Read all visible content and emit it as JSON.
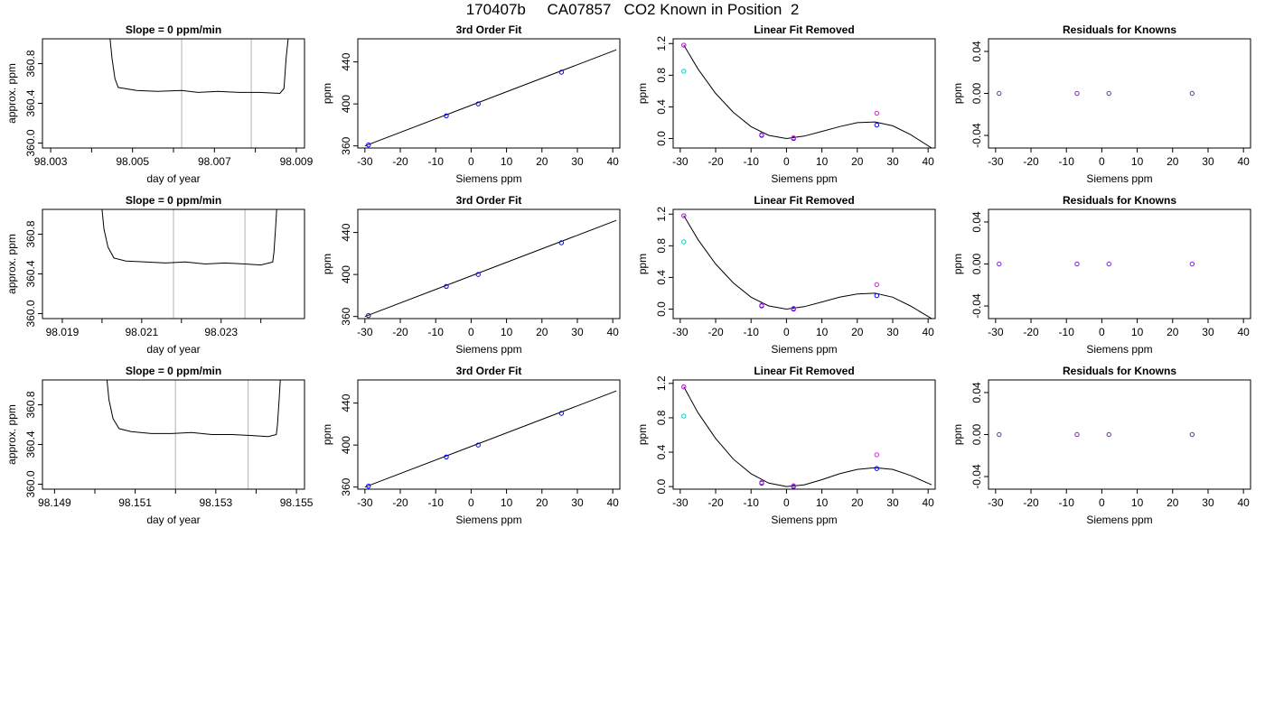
{
  "page_title": "170407b     CA07857   CO2 Known in Position  2",
  "colors": {
    "line": "#000000",
    "gridline": "#bebebe",
    "known_point": "#0000ff",
    "measured_point": "#cc33cc",
    "cyan_point": "#00cccc",
    "residual_point": "#7a1fcc"
  },
  "chart_data": [
    {
      "type": "line",
      "row": 1,
      "panel": "timeseries",
      "title": "Slope =  0  ppm/min",
      "xlabel": "day of year",
      "ylabel": "approx. ppm",
      "x_ticks": [
        "98.003",
        "98.005",
        "98.007",
        "98.009"
      ],
      "x_minor_ticks": [
        98.004,
        98.006,
        98.008
      ],
      "xlim": [
        98.0028,
        98.0092
      ],
      "y_ticks": [
        "360.0",
        "360.4",
        "360.8"
      ],
      "ylim": [
        359.95,
        361.05
      ],
      "vlines": [
        98.0062,
        98.0079
      ],
      "series": [
        {
          "x": [
            98.00445,
            98.0045,
            98.00457,
            98.00465,
            98.0048,
            98.0051,
            98.0056,
            98.0062,
            98.0066,
            98.0071,
            98.0076,
            98.0081,
            98.0086,
            98.0087,
            98.00875,
            98.0088
          ],
          "values": [
            361.05,
            360.85,
            360.65,
            360.56,
            360.55,
            360.53,
            360.52,
            360.53,
            360.51,
            360.52,
            360.51,
            360.51,
            360.5,
            360.55,
            360.85,
            361.05
          ]
        }
      ]
    },
    {
      "type": "scatter",
      "row": 1,
      "panel": "fit",
      "title": "3rd Order Fit",
      "xlabel": "Siemens ppm",
      "ylabel": "ppm",
      "x_ticks": [
        "-30",
        "-20",
        "-10",
        "0",
        "10",
        "20",
        "30",
        "40"
      ],
      "xlim": [
        -32,
        42
      ],
      "y_ticks": [
        "360",
        "400",
        "440"
      ],
      "ylim": [
        358,
        462
      ],
      "line_x": [
        -30,
        41
      ],
      "line_y": [
        360.0,
        451.5
      ],
      "series": [
        {
          "x": [
            -29,
            -7,
            2,
            25.5
          ],
          "values": [
            360.9,
            388.7,
            400.0,
            430.2
          ]
        }
      ]
    },
    {
      "type": "scatter",
      "row": 1,
      "panel": "linear_removed",
      "title": "Linear Fit Removed",
      "xlabel": "Siemens ppm",
      "ylabel": "ppm",
      "x_ticks": [
        "-30",
        "-20",
        "-10",
        "0",
        "10",
        "20",
        "30",
        "40"
      ],
      "xlim": [
        -32,
        42
      ],
      "y_ticks": [
        "0.0",
        "0.4",
        "0.8",
        "1.2"
      ],
      "ylim": [
        -0.12,
        1.26
      ],
      "curve_x": [
        -29,
        -25,
        -20,
        -15,
        -10,
        -5,
        0,
        5,
        10,
        15,
        20,
        25,
        30,
        35,
        41
      ],
      "curve_y": [
        1.18,
        0.88,
        0.57,
        0.33,
        0.15,
        0.04,
        0.0,
        0.03,
        0.09,
        0.15,
        0.2,
        0.21,
        0.16,
        0.05,
        -0.12
      ],
      "series": [
        {
          "x": [
            -29,
            -7,
            2,
            25.5
          ],
          "values": [
            1.18,
            0.04,
            0.0,
            0.17
          ]
        },
        {
          "x": [
            -29,
            -7,
            2,
            25.5
          ],
          "values": [
            1.18,
            0.05,
            0.01,
            0.32
          ]
        },
        {
          "x": [
            -29
          ],
          "values": [
            0.85
          ]
        }
      ]
    },
    {
      "type": "scatter",
      "row": 1,
      "panel": "residuals",
      "title": "Residuals for Knowns",
      "xlabel": "Siemens ppm",
      "ylabel": "ppm",
      "x_ticks": [
        "-30",
        "-20",
        "-10",
        "0",
        "10",
        "20",
        "30",
        "40"
      ],
      "xlim": [
        -32,
        42
      ],
      "y_ticks": [
        "-0.04",
        "0.00",
        "0.04"
      ],
      "ylim": [
        -0.052,
        0.052
      ],
      "series": [
        {
          "x": [
            -29,
            -7,
            2,
            25.5
          ],
          "values": [
            0,
            0,
            0,
            0
          ]
        }
      ]
    },
    {
      "type": "line",
      "row": 2,
      "panel": "timeseries",
      "title": "Slope =  0  ppm/min",
      "xlabel": "day of year",
      "ylabel": "approx. ppm",
      "x_ticks": [
        "98.019",
        "98.021",
        "98.023"
      ],
      "x_minor_ticks": [
        98.02,
        98.022,
        98.024
      ],
      "xlim": [
        98.0185,
        98.0251
      ],
      "y_ticks": [
        "360.0",
        "360.4",
        "360.8"
      ],
      "ylim": [
        359.95,
        361.05
      ],
      "vlines": [
        98.0218,
        98.0236
      ],
      "series": [
        {
          "x": [
            98.02,
            98.02005,
            98.02015,
            98.0203,
            98.0206,
            98.0211,
            98.0216,
            98.0221,
            98.0226,
            98.0231,
            98.0236,
            98.024,
            98.0243,
            98.02433,
            98.02437,
            98.0244
          ],
          "values": [
            361.05,
            360.85,
            360.67,
            360.56,
            360.53,
            360.52,
            360.51,
            360.52,
            360.5,
            360.51,
            360.5,
            360.49,
            360.52,
            360.62,
            360.85,
            361.05
          ]
        }
      ]
    },
    {
      "type": "scatter",
      "row": 2,
      "panel": "fit",
      "title": "3rd Order Fit",
      "xlabel": "Siemens ppm",
      "ylabel": "ppm",
      "x_ticks": [
        "-30",
        "-20",
        "-10",
        "0",
        "10",
        "20",
        "30",
        "40"
      ],
      "xlim": [
        -32,
        42
      ],
      "y_ticks": [
        "360",
        "400",
        "440"
      ],
      "ylim": [
        358,
        462
      ],
      "line_x": [
        -30,
        41
      ],
      "line_y": [
        360.0,
        451.5
      ],
      "series": [
        {
          "x": [
            -29,
            -7,
            2,
            25.5
          ],
          "values": [
            360.9,
            388.7,
            400.0,
            430.2
          ]
        }
      ]
    },
    {
      "type": "scatter",
      "row": 2,
      "panel": "linear_removed",
      "title": "Linear Fit Removed",
      "xlabel": "Siemens ppm",
      "ylabel": "ppm",
      "x_ticks": [
        "-30",
        "-20",
        "-10",
        "0",
        "10",
        "20",
        "30",
        "40"
      ],
      "xlim": [
        -32,
        42
      ],
      "y_ticks": [
        "0.0",
        "0.4",
        "0.8",
        "1.2"
      ],
      "ylim": [
        -0.12,
        1.26
      ],
      "curve_x": [
        -29,
        -25,
        -20,
        -15,
        -10,
        -5,
        0,
        5,
        10,
        15,
        20,
        25,
        30,
        35,
        41
      ],
      "curve_y": [
        1.18,
        0.88,
        0.57,
        0.33,
        0.15,
        0.04,
        0.0,
        0.03,
        0.09,
        0.15,
        0.19,
        0.2,
        0.15,
        0.04,
        -0.12
      ],
      "series": [
        {
          "x": [
            -29,
            -7,
            2,
            25.5
          ],
          "values": [
            1.18,
            0.04,
            0.0,
            0.17
          ]
        },
        {
          "x": [
            -29,
            -7,
            2,
            25.5
          ],
          "values": [
            1.18,
            0.05,
            0.01,
            0.31
          ]
        },
        {
          "x": [
            -29
          ],
          "values": [
            0.85
          ]
        }
      ]
    },
    {
      "type": "scatter",
      "row": 2,
      "panel": "residuals",
      "title": "Residuals for Knowns",
      "xlabel": "Siemens ppm",
      "ylabel": "ppm",
      "x_ticks": [
        "-30",
        "-20",
        "-10",
        "0",
        "10",
        "20",
        "30",
        "40"
      ],
      "xlim": [
        -32,
        42
      ],
      "y_ticks": [
        "-0.04",
        "0.00",
        "0.04"
      ],
      "ylim": [
        -0.052,
        0.052
      ],
      "series": [
        {
          "x": [
            -29,
            -7,
            2,
            25.5
          ],
          "values": [
            0,
            0,
            0,
            0
          ]
        }
      ]
    },
    {
      "type": "line",
      "row": 3,
      "panel": "timeseries",
      "title": "Slope =  0  ppm/min",
      "xlabel": "day of year",
      "ylabel": "approx. ppm",
      "x_ticks": [
        "98.149",
        "98.151",
        "98.153",
        "98.155"
      ],
      "x_minor_ticks": [
        98.15,
        98.152,
        98.154
      ],
      "xlim": [
        98.1487,
        98.1552
      ],
      "y_ticks": [
        "360.0",
        "360.4",
        "360.8"
      ],
      "ylim": [
        359.95,
        361.05
      ],
      "vlines": [
        98.152,
        98.1538
      ],
      "series": [
        {
          "x": [
            98.1503,
            98.15035,
            98.15045,
            98.1506,
            98.1509,
            98.1514,
            98.1519,
            98.1524,
            98.1529,
            98.1534,
            98.1539,
            98.1543,
            98.1545,
            98.15453,
            98.15457,
            98.1546
          ],
          "values": [
            361.05,
            360.85,
            360.66,
            360.56,
            360.53,
            360.51,
            360.51,
            360.52,
            360.5,
            360.5,
            360.49,
            360.48,
            360.5,
            360.6,
            360.85,
            361.05
          ]
        }
      ]
    },
    {
      "type": "scatter",
      "row": 3,
      "panel": "fit",
      "title": "3rd Order Fit",
      "xlabel": "Siemens ppm",
      "ylabel": "ppm",
      "x_ticks": [
        "-30",
        "-20",
        "-10",
        "0",
        "10",
        "20",
        "30",
        "40"
      ],
      "xlim": [
        -32,
        42
      ],
      "y_ticks": [
        "360",
        "400",
        "440"
      ],
      "ylim": [
        358,
        462
      ],
      "line_x": [
        -30,
        41
      ],
      "line_y": [
        360.0,
        451.5
      ],
      "series": [
        {
          "x": [
            -29,
            -7,
            2,
            25.5
          ],
          "values": [
            360.9,
            388.7,
            400.0,
            430.2
          ]
        }
      ]
    },
    {
      "type": "scatter",
      "row": 3,
      "panel": "linear_removed",
      "title": "Linear Fit Removed",
      "xlabel": "Siemens ppm",
      "ylabel": "ppm",
      "x_ticks": [
        "-30",
        "-20",
        "-10",
        "0",
        "10",
        "20",
        "30",
        "40"
      ],
      "xlim": [
        -32,
        42
      ],
      "y_ticks": [
        "0.0",
        "0.4",
        "0.8",
        "1.2"
      ],
      "ylim": [
        -0.03,
        1.24
      ],
      "curve_x": [
        -29,
        -25,
        -20,
        -15,
        -10,
        -5,
        0,
        5,
        10,
        15,
        20,
        25,
        30,
        35,
        41
      ],
      "curve_y": [
        1.16,
        0.86,
        0.56,
        0.32,
        0.15,
        0.04,
        0.0,
        0.02,
        0.08,
        0.15,
        0.2,
        0.22,
        0.2,
        0.13,
        0.02
      ],
      "series": [
        {
          "x": [
            -29,
            -7,
            2,
            25.5
          ],
          "values": [
            1.16,
            0.04,
            0.0,
            0.21
          ]
        },
        {
          "x": [
            -29,
            -7,
            2,
            25.5
          ],
          "values": [
            1.16,
            0.05,
            0.01,
            0.37
          ]
        },
        {
          "x": [
            -29
          ],
          "values": [
            0.82
          ]
        }
      ]
    },
    {
      "type": "scatter",
      "row": 3,
      "panel": "residuals",
      "title": "Residuals for Knowns",
      "xlabel": "Siemens ppm",
      "ylabel": "ppm",
      "x_ticks": [
        "-30",
        "-20",
        "-10",
        "0",
        "10",
        "20",
        "30",
        "40"
      ],
      "xlim": [
        -32,
        42
      ],
      "y_ticks": [
        "-0.04",
        "0.00",
        "0.04"
      ],
      "ylim": [
        -0.052,
        0.052
      ],
      "series": [
        {
          "x": [
            -29,
            -7,
            2,
            25.5
          ],
          "values": [
            0,
            0,
            0,
            0
          ]
        }
      ]
    }
  ]
}
